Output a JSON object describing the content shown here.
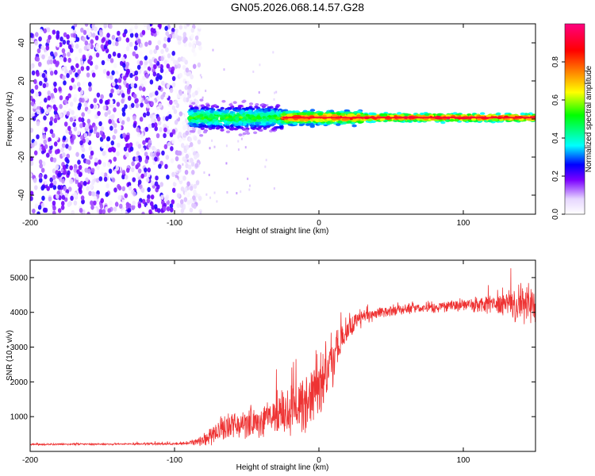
{
  "figure": {
    "title": "GN05.2026.068.14.57.G28"
  },
  "chart_data": [
    {
      "type": "heatmap",
      "name": "spectrogram",
      "xlabel": "Height of straight line (km)",
      "ylabel": "Frequency (Hz)",
      "xlim": [
        -200,
        150
      ],
      "ylim": [
        -50,
        50
      ],
      "xticks": [
        -200,
        -100,
        0,
        100
      ],
      "yticks": [
        -40,
        -20,
        0,
        20,
        40
      ],
      "colorbar": {
        "label": "Normalized spectral amplitude",
        "range": [
          0,
          1
        ],
        "ticks": [
          0.0,
          0.2,
          0.4,
          0.6,
          0.8
        ],
        "tick_labels": [
          "0.0",
          "0.2",
          "0.4",
          "0.6",
          "0.8"
        ],
        "colors": [
          "#ffffff",
          "#e6d6ff",
          "#7b00ff",
          "#0000ff",
          "#00ffff",
          "#00ff00",
          "#ffff00",
          "#ff8000",
          "#ff0000",
          "#ff0080"
        ]
      },
      "regions": [
        {
          "x_range": [
            -200,
            -90
          ],
          "description_level": "scattered noise",
          "amplitude": [
            0.0,
            0.25
          ],
          "freq_range": [
            -50,
            50
          ]
        },
        {
          "x_range": [
            -90,
            -25
          ],
          "amplitude": [
            0.2,
            0.6
          ],
          "freq_range": [
            -7,
            7
          ]
        },
        {
          "x_range": [
            -25,
            30
          ],
          "amplitude": [
            0.5,
            0.95
          ],
          "freq_range": [
            -3,
            4
          ]
        },
        {
          "x_range": [
            30,
            150
          ],
          "amplitude": [
            0.6,
            1.0
          ],
          "freq_range": [
            -2,
            2
          ]
        }
      ],
      "center_frequency": 0.7
    },
    {
      "type": "line",
      "name": "snr",
      "xlabel": "Height of straight line (km)",
      "ylabel": "SNR (10 * v/v)",
      "xlim": [
        -200,
        150
      ],
      "ylim": [
        0,
        5500
      ],
      "xticks": [
        -200,
        -100,
        0,
        100
      ],
      "yticks": [
        1000,
        2000,
        3000,
        4000,
        5000
      ],
      "color": "#ee3333",
      "series": [
        {
          "name": "SNR",
          "x": [
            -200,
            -150,
            -100,
            -90,
            -80,
            -70,
            -60,
            -50,
            -40,
            -30,
            -20,
            -10,
            0,
            10,
            20,
            30,
            40,
            50,
            60,
            70,
            80,
            90,
            100,
            110,
            120,
            130,
            140,
            150
          ],
          "values": [
            200,
            210,
            220,
            250,
            350,
            600,
            750,
            800,
            900,
            1000,
            1100,
            1400,
            1900,
            2700,
            3500,
            3850,
            3950,
            4050,
            4100,
            4120,
            4150,
            4180,
            4200,
            4200,
            4220,
            4230,
            4250,
            4250
          ],
          "noise_amplitude": [
            30,
            30,
            40,
            60,
            250,
            400,
            450,
            500,
            550,
            650,
            800,
            1000,
            1100,
            900,
            500,
            300,
            200,
            180,
            180,
            180,
            200,
            220,
            250,
            300,
            400,
            550,
            650,
            700
          ]
        }
      ]
    }
  ]
}
